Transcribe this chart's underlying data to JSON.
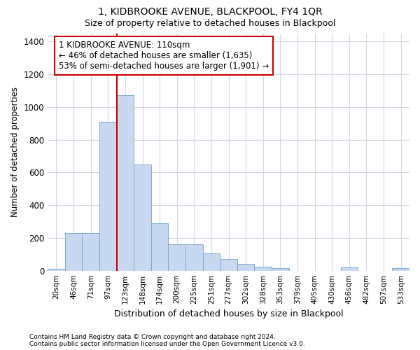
{
  "title1": "1, KIDBROOKE AVENUE, BLACKPOOL, FY4 1QR",
  "title2": "Size of property relative to detached houses in Blackpool",
  "xlabel": "Distribution of detached houses by size in Blackpool",
  "ylabel": "Number of detached properties",
  "categories": [
    "20sqm",
    "46sqm",
    "71sqm",
    "97sqm",
    "123sqm",
    "148sqm",
    "174sqm",
    "200sqm",
    "225sqm",
    "251sqm",
    "277sqm",
    "302sqm",
    "328sqm",
    "353sqm",
    "379sqm",
    "405sqm",
    "430sqm",
    "456sqm",
    "482sqm",
    "507sqm",
    "533sqm"
  ],
  "values": [
    12,
    228,
    228,
    910,
    1070,
    650,
    290,
    160,
    160,
    105,
    70,
    40,
    25,
    15,
    0,
    0,
    0,
    20,
    0,
    0,
    15
  ],
  "bar_color": "#c8d8f0",
  "bar_edge_color": "#7aaad0",
  "annotation_text": "1 KIDBROOKE AVENUE: 110sqm\n← 46% of detached houses are smaller (1,635)\n53% of semi-detached houses are larger (1,901) →",
  "annotation_box_color": "#ffffff",
  "annotation_box_edge": "#cc0000",
  "vline_color": "#cc0000",
  "ylim": [
    0,
    1450
  ],
  "yticks": [
    0,
    200,
    400,
    600,
    800,
    1000,
    1200,
    1400
  ],
  "footnote1": "Contains HM Land Registry data © Crown copyright and database right 2024.",
  "footnote2": "Contains public sector information licensed under the Open Government Licence v3.0.",
  "background_color": "#ffffff",
  "plot_bg_color": "#ffffff",
  "grid_color": "#d0d8e8"
}
